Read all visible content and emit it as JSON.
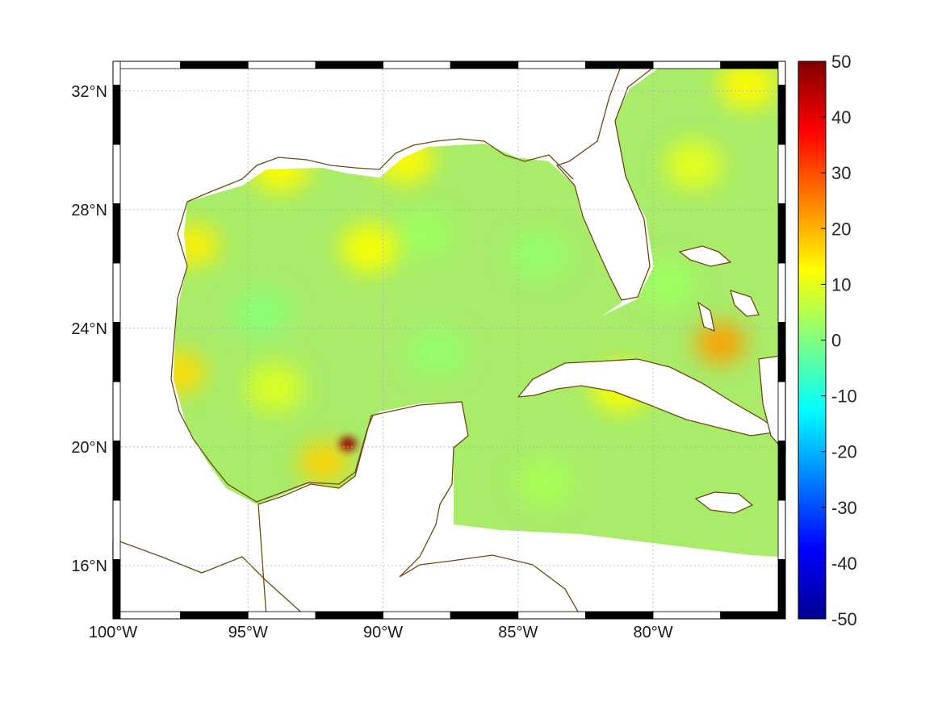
{
  "map": {
    "projection": "equirectangular",
    "lon_range": [
      -100,
      -75.1
    ],
    "lat_range": [
      14.2,
      33
    ],
    "coastline_color": "#6b4a12",
    "grid": true,
    "lon_ticks": [
      {
        "value": -100,
        "label": "100°W"
      },
      {
        "value": -95,
        "label": "95°W"
      },
      {
        "value": -90,
        "label": "90°W"
      },
      {
        "value": -85,
        "label": "85°W"
      },
      {
        "value": -80,
        "label": "80°W"
      }
    ],
    "lat_ticks": [
      {
        "value": 32,
        "label": "32°N"
      },
      {
        "value": 28,
        "label": "28°N"
      },
      {
        "value": 24,
        "label": "24°N"
      },
      {
        "value": 20,
        "label": "20°N"
      },
      {
        "value": 16,
        "label": "16°N"
      }
    ]
  },
  "colorbar": {
    "colormap": "jet",
    "range": [
      -50,
      50
    ],
    "ticks": [
      "50",
      "40",
      "30",
      "20",
      "10",
      "0",
      "-10",
      "-20",
      "-30",
      "-40",
      "-50"
    ],
    "stops": [
      "#00008f",
      "#0000ff",
      "#0080ff",
      "#00ffff",
      "#80ff80",
      "#ffff00",
      "#ff8000",
      "#ff0000",
      "#800000"
    ]
  },
  "field": {
    "background_color": "#a8ec6a",
    "hotspots": [
      {
        "lon": -97.5,
        "lat": 22.5,
        "value": 16
      },
      {
        "lon": -92.2,
        "lat": 19.5,
        "value": 17
      },
      {
        "lon": -91.3,
        "lat": 20.1,
        "value": 48
      },
      {
        "lon": -77.5,
        "lat": 23.5,
        "value": 22
      },
      {
        "lon": -97.0,
        "lat": 26.8,
        "value": 14
      },
      {
        "lon": -76.5,
        "lat": 32.2,
        "value": 13
      },
      {
        "lon": -89.2,
        "lat": 29.7,
        "value": 13
      },
      {
        "lon": -93.8,
        "lat": 29.4,
        "value": 13
      },
      {
        "lon": -90.5,
        "lat": 26.7,
        "value": 12
      },
      {
        "lon": -81.2,
        "lat": 22.0,
        "value": 12
      },
      {
        "lon": -78.5,
        "lat": 29.5,
        "value": 10
      },
      {
        "lon": -94.0,
        "lat": 22.0,
        "value": 9
      }
    ],
    "lowspots": [
      {
        "lon": -94.5,
        "lat": 24.5,
        "value": 1
      },
      {
        "lon": -88.0,
        "lat": 23.2,
        "value": 2
      },
      {
        "lon": -84.2,
        "lat": 26.5,
        "value": 2
      },
      {
        "lon": -88.5,
        "lat": 27.2,
        "value": 3
      },
      {
        "lon": -79.5,
        "lat": 25.5,
        "value": 3
      },
      {
        "lon": -84.0,
        "lat": 18.8,
        "value": 4
      }
    ]
  }
}
